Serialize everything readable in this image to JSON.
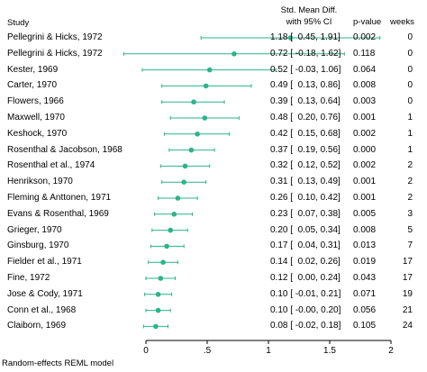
{
  "chart_data": {
    "type": "forest",
    "headers": {
      "study": "Study",
      "effect_line1": "Std. Mean Diff.",
      "effect_line2": "with 95% CI",
      "pvalue": "p-value",
      "weeks": "weeks"
    },
    "footer": "Random-effects REML model",
    "x_ticks": [
      0,
      0.5,
      1,
      1.5,
      2
    ],
    "x_tick_labels": [
      "0",
      ".5",
      "1",
      "1.5",
      "2"
    ],
    "xlim": [
      -0.1,
      2.0
    ],
    "marker_color": "#2ab48c",
    "rows": [
      {
        "study": "Pellegrini & Hicks, 1972",
        "est": 1.18,
        "lo": 0.45,
        "hi": 1.91,
        "ci": "1.18 [  0.45, 1.91]",
        "p": "0.002",
        "weeks": "0"
      },
      {
        "study": "Pellegrini & Hicks, 1972",
        "est": 0.72,
        "lo": -0.18,
        "hi": 1.62,
        "ci": "0.72 [ -0.18, 1.62]",
        "p": "0.118",
        "weeks": "0"
      },
      {
        "study": "Kester, 1969",
        "est": 0.52,
        "lo": -0.03,
        "hi": 1.06,
        "ci": "0.52 [ -0.03, 1.06]",
        "p": "0.064",
        "weeks": "0"
      },
      {
        "study": "Carter, 1970",
        "est": 0.49,
        "lo": 0.13,
        "hi": 0.86,
        "ci": "0.49 [  0.13, 0.86]",
        "p": "0.008",
        "weeks": "0"
      },
      {
        "study": "Flowers, 1966",
        "est": 0.39,
        "lo": 0.13,
        "hi": 0.64,
        "ci": "0.39 [  0.13, 0.64]",
        "p": "0.003",
        "weeks": "0"
      },
      {
        "study": "Maxwell, 1970",
        "est": 0.48,
        "lo": 0.2,
        "hi": 0.76,
        "ci": "0.48 [  0.20, 0.76]",
        "p": "0.001",
        "weeks": "1"
      },
      {
        "study": "Keshock, 1970",
        "est": 0.42,
        "lo": 0.15,
        "hi": 0.68,
        "ci": "0.42 [  0.15, 0.68]",
        "p": "0.002",
        "weeks": "1"
      },
      {
        "study": "Rosenthal & Jacobson, 1968",
        "est": 0.37,
        "lo": 0.19,
        "hi": 0.56,
        "ci": "0.37 [  0.19, 0.56]",
        "p": "0.000",
        "weeks": "1"
      },
      {
        "study": "Rosenthal et al., 1974",
        "est": 0.32,
        "lo": 0.12,
        "hi": 0.52,
        "ci": "0.32 [  0.12, 0.52]",
        "p": "0.002",
        "weeks": "2"
      },
      {
        "study": "Henrikson, 1970",
        "est": 0.31,
        "lo": 0.13,
        "hi": 0.49,
        "ci": "0.31 [  0.13, 0.49]",
        "p": "0.001",
        "weeks": "2"
      },
      {
        "study": "Fleming & Anttonen, 1971",
        "est": 0.26,
        "lo": 0.1,
        "hi": 0.42,
        "ci": "0.26 [  0.10, 0.42]",
        "p": "0.001",
        "weeks": "2"
      },
      {
        "study": "Evans & Rosenthal, 1969",
        "est": 0.23,
        "lo": 0.07,
        "hi": 0.38,
        "ci": "0.23 [  0.07, 0.38]",
        "p": "0.005",
        "weeks": "3"
      },
      {
        "study": "Grieger, 1970",
        "est": 0.2,
        "lo": 0.05,
        "hi": 0.34,
        "ci": "0.20 [  0.05, 0.34]",
        "p": "0.008",
        "weeks": "5"
      },
      {
        "study": "Ginsburg, 1970",
        "est": 0.17,
        "lo": 0.04,
        "hi": 0.31,
        "ci": "0.17 [  0.04, 0.31]",
        "p": "0.013",
        "weeks": "7"
      },
      {
        "study": "Fielder et al., 1971",
        "est": 0.14,
        "lo": 0.02,
        "hi": 0.26,
        "ci": "0.14 [  0.02, 0.26]",
        "p": "0.019",
        "weeks": "17"
      },
      {
        "study": "Fine, 1972",
        "est": 0.12,
        "lo": 0.0,
        "hi": 0.24,
        "ci": "0.12 [  0.00, 0.24]",
        "p": "0.043",
        "weeks": "17"
      },
      {
        "study": "Jose & Cody, 1971",
        "est": 0.1,
        "lo": -0.01,
        "hi": 0.21,
        "ci": "0.10 [ -0.01, 0.21]",
        "p": "0.071",
        "weeks": "19"
      },
      {
        "study": "Conn et al., 1968",
        "est": 0.1,
        "lo": -0.0,
        "hi": 0.2,
        "ci": "0.10 [ -0.00, 0.20]",
        "p": "0.056",
        "weeks": "21"
      },
      {
        "study": "Claiborn, 1969",
        "est": 0.08,
        "lo": -0.02,
        "hi": 0.18,
        "ci": "0.08 [ -0.02, 0.18]",
        "p": "0.105",
        "weeks": "24"
      }
    ]
  }
}
